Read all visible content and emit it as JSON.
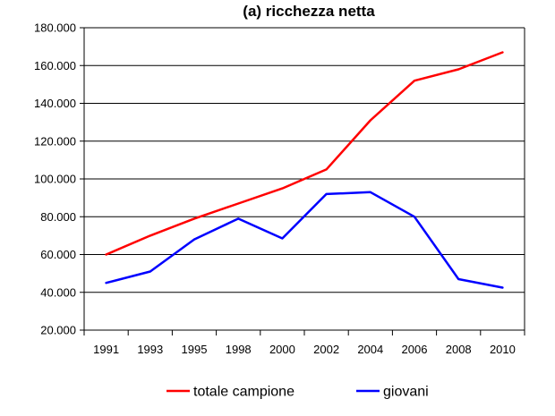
{
  "chart_data": {
    "type": "line",
    "title": "(a) ricchezza netta",
    "xlabel": "",
    "ylabel": "",
    "categories": [
      "1991",
      "1993",
      "1995",
      "1998",
      "2000",
      "2002",
      "2004",
      "2006",
      "2008",
      "2010"
    ],
    "y_ticks": [
      "20.000",
      "40.000",
      "60.000",
      "80.000",
      "100.000",
      "120.000",
      "140.000",
      "160.000",
      "180.000"
    ],
    "ylim": [
      20000,
      180000
    ],
    "grid": true,
    "legend_position": "bottom",
    "series": [
      {
        "name": "totale campione",
        "color": "#ff0000",
        "values": [
          60000,
          70000,
          79000,
          87000,
          95000,
          105000,
          131000,
          152000,
          158000,
          167000
        ]
      },
      {
        "name": "giovani",
        "color": "#0000ff",
        "values": [
          45000,
          51000,
          68000,
          79000,
          68500,
          92000,
          93000,
          80000,
          47000,
          42500
        ]
      }
    ]
  }
}
